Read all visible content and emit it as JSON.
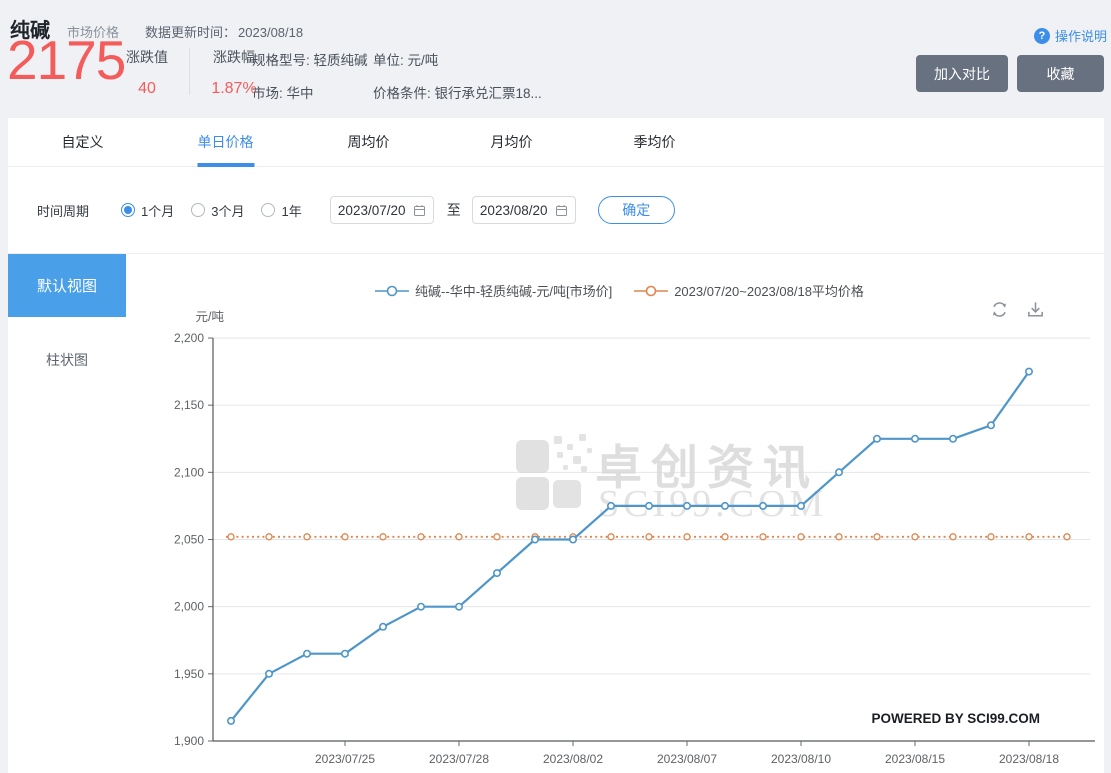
{
  "colors": {
    "accent_blue": "#3D8EE8",
    "price_red": "#F45C5C",
    "line_blue": "#4E96C9",
    "avg_orange": "#E0854D",
    "button_dark": "#68717F",
    "sidebar_active_blue": "#49A0E8"
  },
  "header": {
    "title": "纯碱",
    "category": "市场价格",
    "update_label": "数据更新时间：",
    "update_value": "2023/08/18",
    "help_label": "操作说明",
    "price": "2175",
    "change_label": "涨跌值",
    "change_value": "40",
    "change_pct_label": "涨跌幅",
    "change_pct_value": "1.87%",
    "spec_label": "规格型号:",
    "spec_value": "轻质纯碱",
    "market_label": "市场:",
    "market_value": "华中",
    "unit_label": "单位:",
    "unit_value": "元/吨",
    "condition_label": "价格条件:",
    "condition_value": "银行承兑汇票18...",
    "compare_button": "加入对比",
    "favorite_button": "收藏"
  },
  "tabs": [
    {
      "label": "自定义",
      "active": false
    },
    {
      "label": "单日价格",
      "active": true
    },
    {
      "label": "周均价",
      "active": false
    },
    {
      "label": "月均价",
      "active": false
    },
    {
      "label": "季均价",
      "active": false
    }
  ],
  "filter": {
    "period_label": "时间周期",
    "options": [
      {
        "label": "1个月",
        "selected": true
      },
      {
        "label": "3个月",
        "selected": false
      },
      {
        "label": "1年",
        "selected": false
      }
    ],
    "start_date": "2023/07/20",
    "to_label": "至",
    "end_date": "2023/08/20",
    "confirm_button": "确定"
  },
  "sidebar": {
    "items": [
      {
        "label": "默认视图",
        "active": true
      },
      {
        "label": "柱状图",
        "active": false
      }
    ]
  },
  "chart_toolbar": {
    "icons": [
      "refresh",
      "download"
    ]
  },
  "chart_data": {
    "type": "line",
    "title": "",
    "xlabel": "",
    "ylabel": "元/吨",
    "ylim": [
      1900,
      2200
    ],
    "ytick_step": 50,
    "grid": true,
    "legend_position": "top",
    "x_dates": [
      "2023/07/20",
      "2023/07/21",
      "2023/07/24",
      "2023/07/25",
      "2023/07/26",
      "2023/07/27",
      "2023/07/28",
      "2023/07/31",
      "2023/08/01",
      "2023/08/02",
      "2023/08/03",
      "2023/08/04",
      "2023/08/07",
      "2023/08/08",
      "2023/08/09",
      "2023/08/10",
      "2023/08/11",
      "2023/08/14",
      "2023/08/15",
      "2023/08/16",
      "2023/08/17",
      "2023/08/18"
    ],
    "xtick_labels": [
      "2023/07/25",
      "2023/07/28",
      "2023/08/02",
      "2023/08/07",
      "2023/08/10",
      "2023/08/15",
      "2023/08/18"
    ],
    "xtick_indices": [
      3,
      6,
      9,
      12,
      15,
      18,
      21
    ],
    "series": [
      {
        "name": "纯碱--华中-轻质纯碱-元/吨[市场价]",
        "type": "line",
        "color": "#4E96C9",
        "values": [
          1915,
          1950,
          1965,
          1965,
          1985,
          2000,
          2000,
          2025,
          2050,
          2050,
          2075,
          2075,
          2075,
          2075,
          2075,
          2075,
          2100,
          2125,
          2125,
          2125,
          2135,
          2175
        ]
      },
      {
        "name": "2023/07/20~2023/08/18平均价格",
        "type": "average-line",
        "color": "#E0854D",
        "line_style": "dotted",
        "value": 2052
      }
    ],
    "watermark_line1": "卓创资讯",
    "watermark_line2": "SCI99.COM",
    "powered_by": "POWERED BY SCI99.COM"
  }
}
